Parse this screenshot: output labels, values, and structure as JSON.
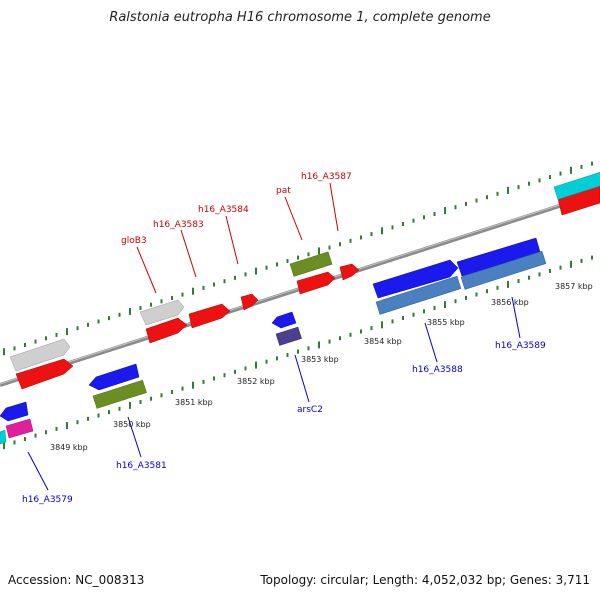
{
  "title": "Ralstonia eutropha H16 chromosome 1, complete genome",
  "footer": {
    "accession": "Accession: NC_008313",
    "topology": "Topology: circular; Length: 4,052,032 bp; Genes: 3,711"
  },
  "colors": {
    "backbone": "#8a8a8a",
    "tick": "#2e7d32",
    "forward_label": "#cc0000",
    "reverse_label": "#0000cc"
  },
  "scale_labels": [
    {
      "text": "3849 kbp",
      "bp": 3849
    },
    {
      "text": "3850 kbp",
      "bp": 3850
    },
    {
      "text": "3851 kbp",
      "bp": 3851
    },
    {
      "text": "3852 kbp",
      "bp": 3852
    },
    {
      "text": "3853 kbp",
      "bp": 3853
    },
    {
      "text": "3854 kbp",
      "bp": 3854
    },
    {
      "text": "3855 kbp",
      "bp": 3855
    },
    {
      "text": "3856 kbp",
      "bp": 3856
    },
    {
      "text": "3857 kbp",
      "bp": 3857
    }
  ],
  "gene_labels": [
    {
      "text": "gloB3",
      "strand": "forward"
    },
    {
      "text": "h16_A3583",
      "strand": "forward"
    },
    {
      "text": "h16_A3584",
      "strand": "forward"
    },
    {
      "text": "pat",
      "strand": "forward"
    },
    {
      "text": "h16_A3587",
      "strand": "forward"
    },
    {
      "text": "h16_A3579",
      "strand": "reverse"
    },
    {
      "text": "h16_A3581",
      "strand": "reverse"
    },
    {
      "text": "arsC2",
      "strand": "reverse"
    },
    {
      "text": "h16_A3588",
      "strand": "reverse"
    },
    {
      "text": "h16_A3589",
      "strand": "reverse"
    }
  ],
  "feature_colors": [
    "#c8c8c8",
    "#ee1111",
    "#1a1aee",
    "#6b8e23",
    "#e0209a",
    "#00cfd8",
    "#4a80bf",
    "#4b3f8f"
  ]
}
